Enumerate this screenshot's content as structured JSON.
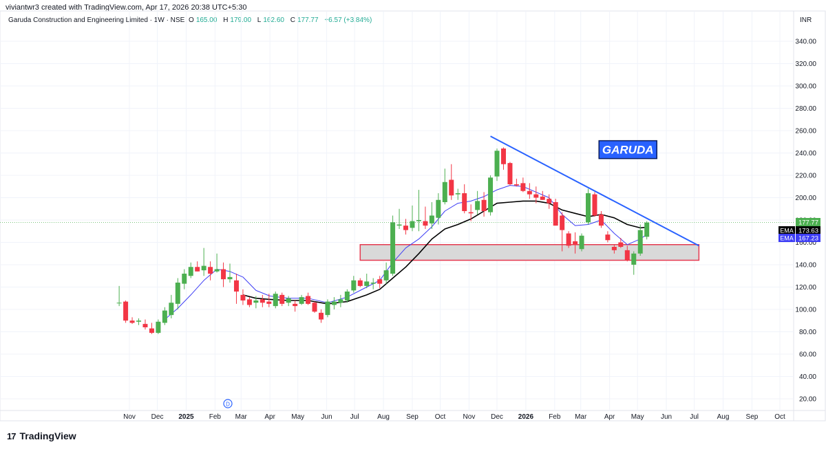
{
  "header": {
    "created_by": "viviantwr3 created with TradingView.com, Apr 17, 2026 20:38 UTC+5:30"
  },
  "legend": {
    "title": "Garuda Construction and Engineering Limited · 1W · NSE",
    "open_label": "O",
    "open": "165.00",
    "high_label": "H",
    "high": "179.00",
    "low_label": "L",
    "low": "162.60",
    "close_label": "C",
    "close": "177.77",
    "change": "+6.57 (+3.84%)"
  },
  "currency": "INR",
  "colors": {
    "up": "#4caf50",
    "down": "#f23645",
    "ema_fast": "#3d3df5",
    "ema_slow": "#000000",
    "trendline": "#2962ff",
    "zone_border": "#e53950",
    "zone_fill": "#d9d9d9",
    "garuda_label_bg": "#2962ff"
  },
  "annotation": {
    "text": "GARUDA"
  },
  "price_tags": {
    "last": "177.77",
    "ema_slow_label": "EMA",
    "ema_slow": "173.63",
    "ema_fast_label": "EMA",
    "ema_fast": "167.23"
  },
  "event_marker": "D",
  "footer": {
    "logo_text": "TradingView",
    "logo_mark": "17"
  },
  "chart_data": {
    "type": "candlestick",
    "y_ticks": [
      "20.00",
      "40.00",
      "60.00",
      "80.00",
      "100.00",
      "120.00",
      "140.00",
      "160.00",
      "180.00",
      "200.00",
      "220.00",
      "240.00",
      "260.00",
      "280.00",
      "300.00",
      "320.00",
      "340.00"
    ],
    "ylim": [
      10,
      350
    ],
    "x_labels": [
      {
        "label": "Nov",
        "date": "2024-11-01",
        "bold": false
      },
      {
        "label": "Dec",
        "date": "2024-12-01",
        "bold": false
      },
      {
        "label": "2025",
        "date": "2025-01-01",
        "bold": true
      },
      {
        "label": "Feb",
        "date": "2025-02-01",
        "bold": false
      },
      {
        "label": "Mar",
        "date": "2025-03-01",
        "bold": false
      },
      {
        "label": "Apr",
        "date": "2025-04-01",
        "bold": false
      },
      {
        "label": "May",
        "date": "2025-05-01",
        "bold": false
      },
      {
        "label": "Jun",
        "date": "2025-06-01",
        "bold": false
      },
      {
        "label": "Jul",
        "date": "2025-07-01",
        "bold": false
      },
      {
        "label": "Aug",
        "date": "2025-08-01",
        "bold": false
      },
      {
        "label": "Sep",
        "date": "2025-09-01",
        "bold": false
      },
      {
        "label": "Oct",
        "date": "2025-10-01",
        "bold": false
      },
      {
        "label": "Nov",
        "date": "2025-11-01",
        "bold": false
      },
      {
        "label": "Dec",
        "date": "2025-12-01",
        "bold": false
      },
      {
        "label": "2026",
        "date": "2026-01-01",
        "bold": true
      },
      {
        "label": "Feb",
        "date": "2026-02-01",
        "bold": false
      },
      {
        "label": "Mar",
        "date": "2026-03-01",
        "bold": false
      },
      {
        "label": "Apr",
        "date": "2026-04-01",
        "bold": false
      },
      {
        "label": "May",
        "date": "2026-05-01",
        "bold": false
      },
      {
        "label": "Jun",
        "date": "2026-06-01",
        "bold": false
      },
      {
        "label": "Jul",
        "date": "2026-07-01",
        "bold": false
      },
      {
        "label": "Aug",
        "date": "2026-08-01",
        "bold": false
      },
      {
        "label": "Sep",
        "date": "2026-09-01",
        "bold": false
      },
      {
        "label": "Oct",
        "date": "2026-10-01",
        "bold": false
      }
    ],
    "candles": [
      {
        "date": "2024-10-21",
        "o": 106,
        "h": 121,
        "l": 103,
        "c": 106
      },
      {
        "date": "2024-10-28",
        "o": 107,
        "h": 108,
        "l": 88,
        "c": 90
      },
      {
        "date": "2024-11-04",
        "o": 90,
        "h": 93,
        "l": 87,
        "c": 88
      },
      {
        "date": "2024-11-11",
        "o": 89,
        "h": 92,
        "l": 86,
        "c": 90
      },
      {
        "date": "2024-11-18",
        "o": 87,
        "h": 91,
        "l": 82,
        "c": 84
      },
      {
        "date": "2024-11-25",
        "o": 83,
        "h": 88,
        "l": 78,
        "c": 79
      },
      {
        "date": "2024-12-02",
        "o": 79,
        "h": 91,
        "l": 78,
        "c": 89
      },
      {
        "date": "2024-12-09",
        "o": 88,
        "h": 102,
        "l": 86,
        "c": 99
      },
      {
        "date": "2024-12-16",
        "o": 95,
        "h": 113,
        "l": 92,
        "c": 106
      },
      {
        "date": "2024-12-23",
        "o": 105,
        "h": 128,
        "l": 100,
        "c": 124
      },
      {
        "date": "2024-12-30",
        "o": 123,
        "h": 136,
        "l": 118,
        "c": 132
      },
      {
        "date": "2025-01-06",
        "o": 130,
        "h": 142,
        "l": 128,
        "c": 138
      },
      {
        "date": "2025-01-13",
        "o": 138,
        "h": 143,
        "l": 134,
        "c": 134
      },
      {
        "date": "2025-01-20",
        "o": 135,
        "h": 155,
        "l": 130,
        "c": 139
      },
      {
        "date": "2025-01-27",
        "o": 138,
        "h": 143,
        "l": 126,
        "c": 132
      },
      {
        "date": "2025-02-03",
        "o": 134,
        "h": 150,
        "l": 133,
        "c": 136
      },
      {
        "date": "2025-02-10",
        "o": 136,
        "h": 142,
        "l": 120,
        "c": 127
      },
      {
        "date": "2025-02-17",
        "o": 127,
        "h": 141,
        "l": 124,
        "c": 129
      },
      {
        "date": "2025-02-24",
        "o": 126,
        "h": 132,
        "l": 105,
        "c": 116
      },
      {
        "date": "2025-03-03",
        "o": 113,
        "h": 118,
        "l": 104,
        "c": 108
      },
      {
        "date": "2025-03-10",
        "o": 109,
        "h": 111,
        "l": 102,
        "c": 104
      },
      {
        "date": "2025-03-17",
        "o": 106,
        "h": 112,
        "l": 101,
        "c": 108
      },
      {
        "date": "2025-03-24",
        "o": 109,
        "h": 113,
        "l": 102,
        "c": 106
      },
      {
        "date": "2025-03-31",
        "o": 107,
        "h": 114,
        "l": 102,
        "c": 105
      },
      {
        "date": "2025-04-07",
        "o": 103,
        "h": 116,
        "l": 101,
        "c": 114
      },
      {
        "date": "2025-04-14",
        "o": 113,
        "h": 115,
        "l": 103,
        "c": 105
      },
      {
        "date": "2025-04-21",
        "o": 106,
        "h": 112,
        "l": 103,
        "c": 110
      },
      {
        "date": "2025-04-28",
        "o": 105,
        "h": 108,
        "l": 98,
        "c": 103
      },
      {
        "date": "2025-05-05",
        "o": 105,
        "h": 113,
        "l": 104,
        "c": 111
      },
      {
        "date": "2025-05-12",
        "o": 112,
        "h": 115,
        "l": 104,
        "c": 105
      },
      {
        "date": "2025-05-19",
        "o": 106,
        "h": 107,
        "l": 97,
        "c": 98
      },
      {
        "date": "2025-05-26",
        "o": 97,
        "h": 100,
        "l": 88,
        "c": 91
      },
      {
        "date": "2025-06-02",
        "o": 95,
        "h": 109,
        "l": 93,
        "c": 107
      },
      {
        "date": "2025-06-09",
        "o": 104,
        "h": 111,
        "l": 100,
        "c": 107
      },
      {
        "date": "2025-06-16",
        "o": 106,
        "h": 113,
        "l": 102,
        "c": 109
      },
      {
        "date": "2025-06-23",
        "o": 108,
        "h": 118,
        "l": 106,
        "c": 116
      },
      {
        "date": "2025-06-30",
        "o": 117,
        "h": 130,
        "l": 115,
        "c": 126
      },
      {
        "date": "2025-07-07",
        "o": 126,
        "h": 128,
        "l": 120,
        "c": 121
      },
      {
        "date": "2025-07-14",
        "o": 121,
        "h": 132,
        "l": 119,
        "c": 125
      },
      {
        "date": "2025-07-21",
        "o": 123,
        "h": 128,
        "l": 118,
        "c": 124
      },
      {
        "date": "2025-07-28",
        "o": 127,
        "h": 130,
        "l": 119,
        "c": 123
      },
      {
        "date": "2025-08-04",
        "o": 126,
        "h": 142,
        "l": 123,
        "c": 135
      },
      {
        "date": "2025-08-11",
        "o": 132,
        "h": 184,
        "l": 130,
        "c": 178
      },
      {
        "date": "2025-08-18",
        "o": 175,
        "h": 190,
        "l": 172,
        "c": 176
      },
      {
        "date": "2025-08-25",
        "o": 175,
        "h": 181,
        "l": 167,
        "c": 171
      },
      {
        "date": "2025-09-01",
        "o": 173,
        "h": 193,
        "l": 170,
        "c": 179
      },
      {
        "date": "2025-09-08",
        "o": 179,
        "h": 207,
        "l": 170,
        "c": 180
      },
      {
        "date": "2025-09-15",
        "o": 179,
        "h": 192,
        "l": 172,
        "c": 175
      },
      {
        "date": "2025-09-22",
        "o": 177,
        "h": 196,
        "l": 172,
        "c": 184
      },
      {
        "date": "2025-09-29",
        "o": 182,
        "h": 204,
        "l": 176,
        "c": 198
      },
      {
        "date": "2025-10-06",
        "o": 196,
        "h": 226,
        "l": 194,
        "c": 214
      },
      {
        "date": "2025-10-13",
        "o": 216,
        "h": 230,
        "l": 198,
        "c": 202
      },
      {
        "date": "2025-10-20",
        "o": 203,
        "h": 208,
        "l": 198,
        "c": 204
      },
      {
        "date": "2025-10-27",
        "o": 204,
        "h": 212,
        "l": 186,
        "c": 188
      },
      {
        "date": "2025-11-03",
        "o": 187,
        "h": 194,
        "l": 179,
        "c": 186
      },
      {
        "date": "2025-11-10",
        "o": 189,
        "h": 206,
        "l": 185,
        "c": 197
      },
      {
        "date": "2025-11-17",
        "o": 198,
        "h": 205,
        "l": 183,
        "c": 188
      },
      {
        "date": "2025-11-24",
        "o": 187,
        "h": 220,
        "l": 184,
        "c": 218
      },
      {
        "date": "2025-12-01",
        "o": 219,
        "h": 244,
        "l": 215,
        "c": 242
      },
      {
        "date": "2025-12-08",
        "o": 244,
        "h": 245,
        "l": 225,
        "c": 230
      },
      {
        "date": "2025-12-15",
        "o": 231,
        "h": 232,
        "l": 211,
        "c": 212
      },
      {
        "date": "2025-12-22",
        "o": 212,
        "h": 217,
        "l": 210,
        "c": 211
      },
      {
        "date": "2025-12-29",
        "o": 213,
        "h": 218,
        "l": 205,
        "c": 206
      },
      {
        "date": "2026-01-05",
        "o": 206,
        "h": 213,
        "l": 199,
        "c": 203
      },
      {
        "date": "2026-01-12",
        "o": 203,
        "h": 210,
        "l": 195,
        "c": 200
      },
      {
        "date": "2026-01-19",
        "o": 201,
        "h": 206,
        "l": 198,
        "c": 198
      },
      {
        "date": "2026-01-26",
        "o": 199,
        "h": 203,
        "l": 190,
        "c": 195
      },
      {
        "date": "2026-02-02",
        "o": 196,
        "h": 199,
        "l": 175,
        "c": 175
      },
      {
        "date": "2026-02-09",
        "o": 184,
        "h": 187,
        "l": 152,
        "c": 171
      },
      {
        "date": "2026-02-16",
        "o": 168,
        "h": 170,
        "l": 155,
        "c": 157
      },
      {
        "date": "2026-02-23",
        "o": 161,
        "h": 169,
        "l": 150,
        "c": 158
      },
      {
        "date": "2026-03-02",
        "o": 154,
        "h": 168,
        "l": 152,
        "c": 166
      },
      {
        "date": "2026-03-09",
        "o": 178,
        "h": 208,
        "l": 176,
        "c": 204
      },
      {
        "date": "2026-03-16",
        "o": 203,
        "h": 205,
        "l": 183,
        "c": 184
      },
      {
        "date": "2026-03-23",
        "o": 185,
        "h": 188,
        "l": 173,
        "c": 175
      },
      {
        "date": "2026-03-30",
        "o": 167,
        "h": 170,
        "l": 160,
        "c": 162
      },
      {
        "date": "2026-04-06",
        "o": 156,
        "h": 158,
        "l": 150,
        "c": 153
      },
      {
        "date": "2026-04-13",
        "o": 160,
        "h": 164,
        "l": 155,
        "c": 156
      },
      {
        "date": "2026-04-20",
        "o": 153,
        "h": 157,
        "l": 143,
        "c": 144
      },
      {
        "date": "2026-04-27",
        "o": 140,
        "h": 152,
        "l": 131,
        "c": 150
      },
      {
        "date": "2026-05-04",
        "o": 150,
        "h": 176,
        "l": 148,
        "c": 171
      },
      {
        "date": "2026-05-11",
        "o": 165,
        "h": 179,
        "l": 162.6,
        "c": 177.77
      }
    ],
    "ema_slow": {
      "name": "EMA",
      "points": [
        [
          "2025-03-03",
          113
        ],
        [
          "2025-03-17",
          110
        ],
        [
          "2025-04-01",
          109
        ],
        [
          "2025-04-21",
          108
        ],
        [
          "2025-05-12",
          108
        ],
        [
          "2025-06-02",
          105
        ],
        [
          "2025-06-23",
          107
        ],
        [
          "2025-07-14",
          113
        ],
        [
          "2025-07-28",
          118
        ],
        [
          "2025-08-11",
          128
        ],
        [
          "2025-08-25",
          138
        ],
        [
          "2025-09-08",
          150
        ],
        [
          "2025-09-22",
          163
        ],
        [
          "2025-10-06",
          172
        ],
        [
          "2025-10-20",
          176
        ],
        [
          "2025-11-03",
          181
        ],
        [
          "2025-11-17",
          188
        ],
        [
          "2025-12-01",
          195
        ],
        [
          "2025-12-15",
          196
        ],
        [
          "2025-12-29",
          197
        ],
        [
          "2026-01-12",
          197
        ],
        [
          "2026-01-26",
          195
        ],
        [
          "2026-02-09",
          189
        ],
        [
          "2026-02-23",
          186
        ],
        [
          "2026-03-09",
          183
        ],
        [
          "2026-03-23",
          185
        ],
        [
          "2026-04-06",
          182
        ],
        [
          "2026-04-20",
          176
        ],
        [
          "2026-05-04",
          173
        ],
        [
          "2026-05-11",
          173.63
        ]
      ]
    },
    "ema_fast": {
      "name": "EMA",
      "points": [
        [
          "2024-12-09",
          91
        ],
        [
          "2024-12-23",
          101
        ],
        [
          "2025-01-06",
          113
        ],
        [
          "2025-01-20",
          126
        ],
        [
          "2025-02-03",
          136
        ],
        [
          "2025-02-17",
          134
        ],
        [
          "2025-03-03",
          129
        ],
        [
          "2025-03-17",
          117
        ],
        [
          "2025-04-01",
          112
        ],
        [
          "2025-04-21",
          110
        ],
        [
          "2025-05-12",
          110
        ],
        [
          "2025-06-02",
          106
        ],
        [
          "2025-06-23",
          111
        ],
        [
          "2025-07-14",
          120
        ],
        [
          "2025-07-28",
          126
        ],
        [
          "2025-08-11",
          142
        ],
        [
          "2025-08-25",
          155
        ],
        [
          "2025-09-08",
          163
        ],
        [
          "2025-09-22",
          174
        ],
        [
          "2025-10-06",
          188
        ],
        [
          "2025-10-20",
          195
        ],
        [
          "2025-11-03",
          197
        ],
        [
          "2025-11-17",
          201
        ],
        [
          "2025-12-01",
          207
        ],
        [
          "2025-12-15",
          211
        ],
        [
          "2025-12-29",
          210
        ],
        [
          "2026-01-12",
          205
        ],
        [
          "2026-01-26",
          200
        ],
        [
          "2026-02-09",
          185
        ],
        [
          "2026-02-23",
          175
        ],
        [
          "2026-03-09",
          176
        ],
        [
          "2026-03-23",
          180
        ],
        [
          "2026-04-06",
          168
        ],
        [
          "2026-04-20",
          158
        ],
        [
          "2026-05-04",
          163
        ],
        [
          "2026-05-11",
          167.23
        ]
      ]
    },
    "trendline": {
      "start": [
        "2025-11-24",
        255
      ],
      "end": [
        "2026-07-06",
        157
      ]
    },
    "support_zone": {
      "x_start": "2025-07-07",
      "x_end": "2026-07-06",
      "top": 158,
      "bottom": 144
    },
    "garuda_label_pos": {
      "date": "2026-05-04",
      "price": 235
    }
  }
}
